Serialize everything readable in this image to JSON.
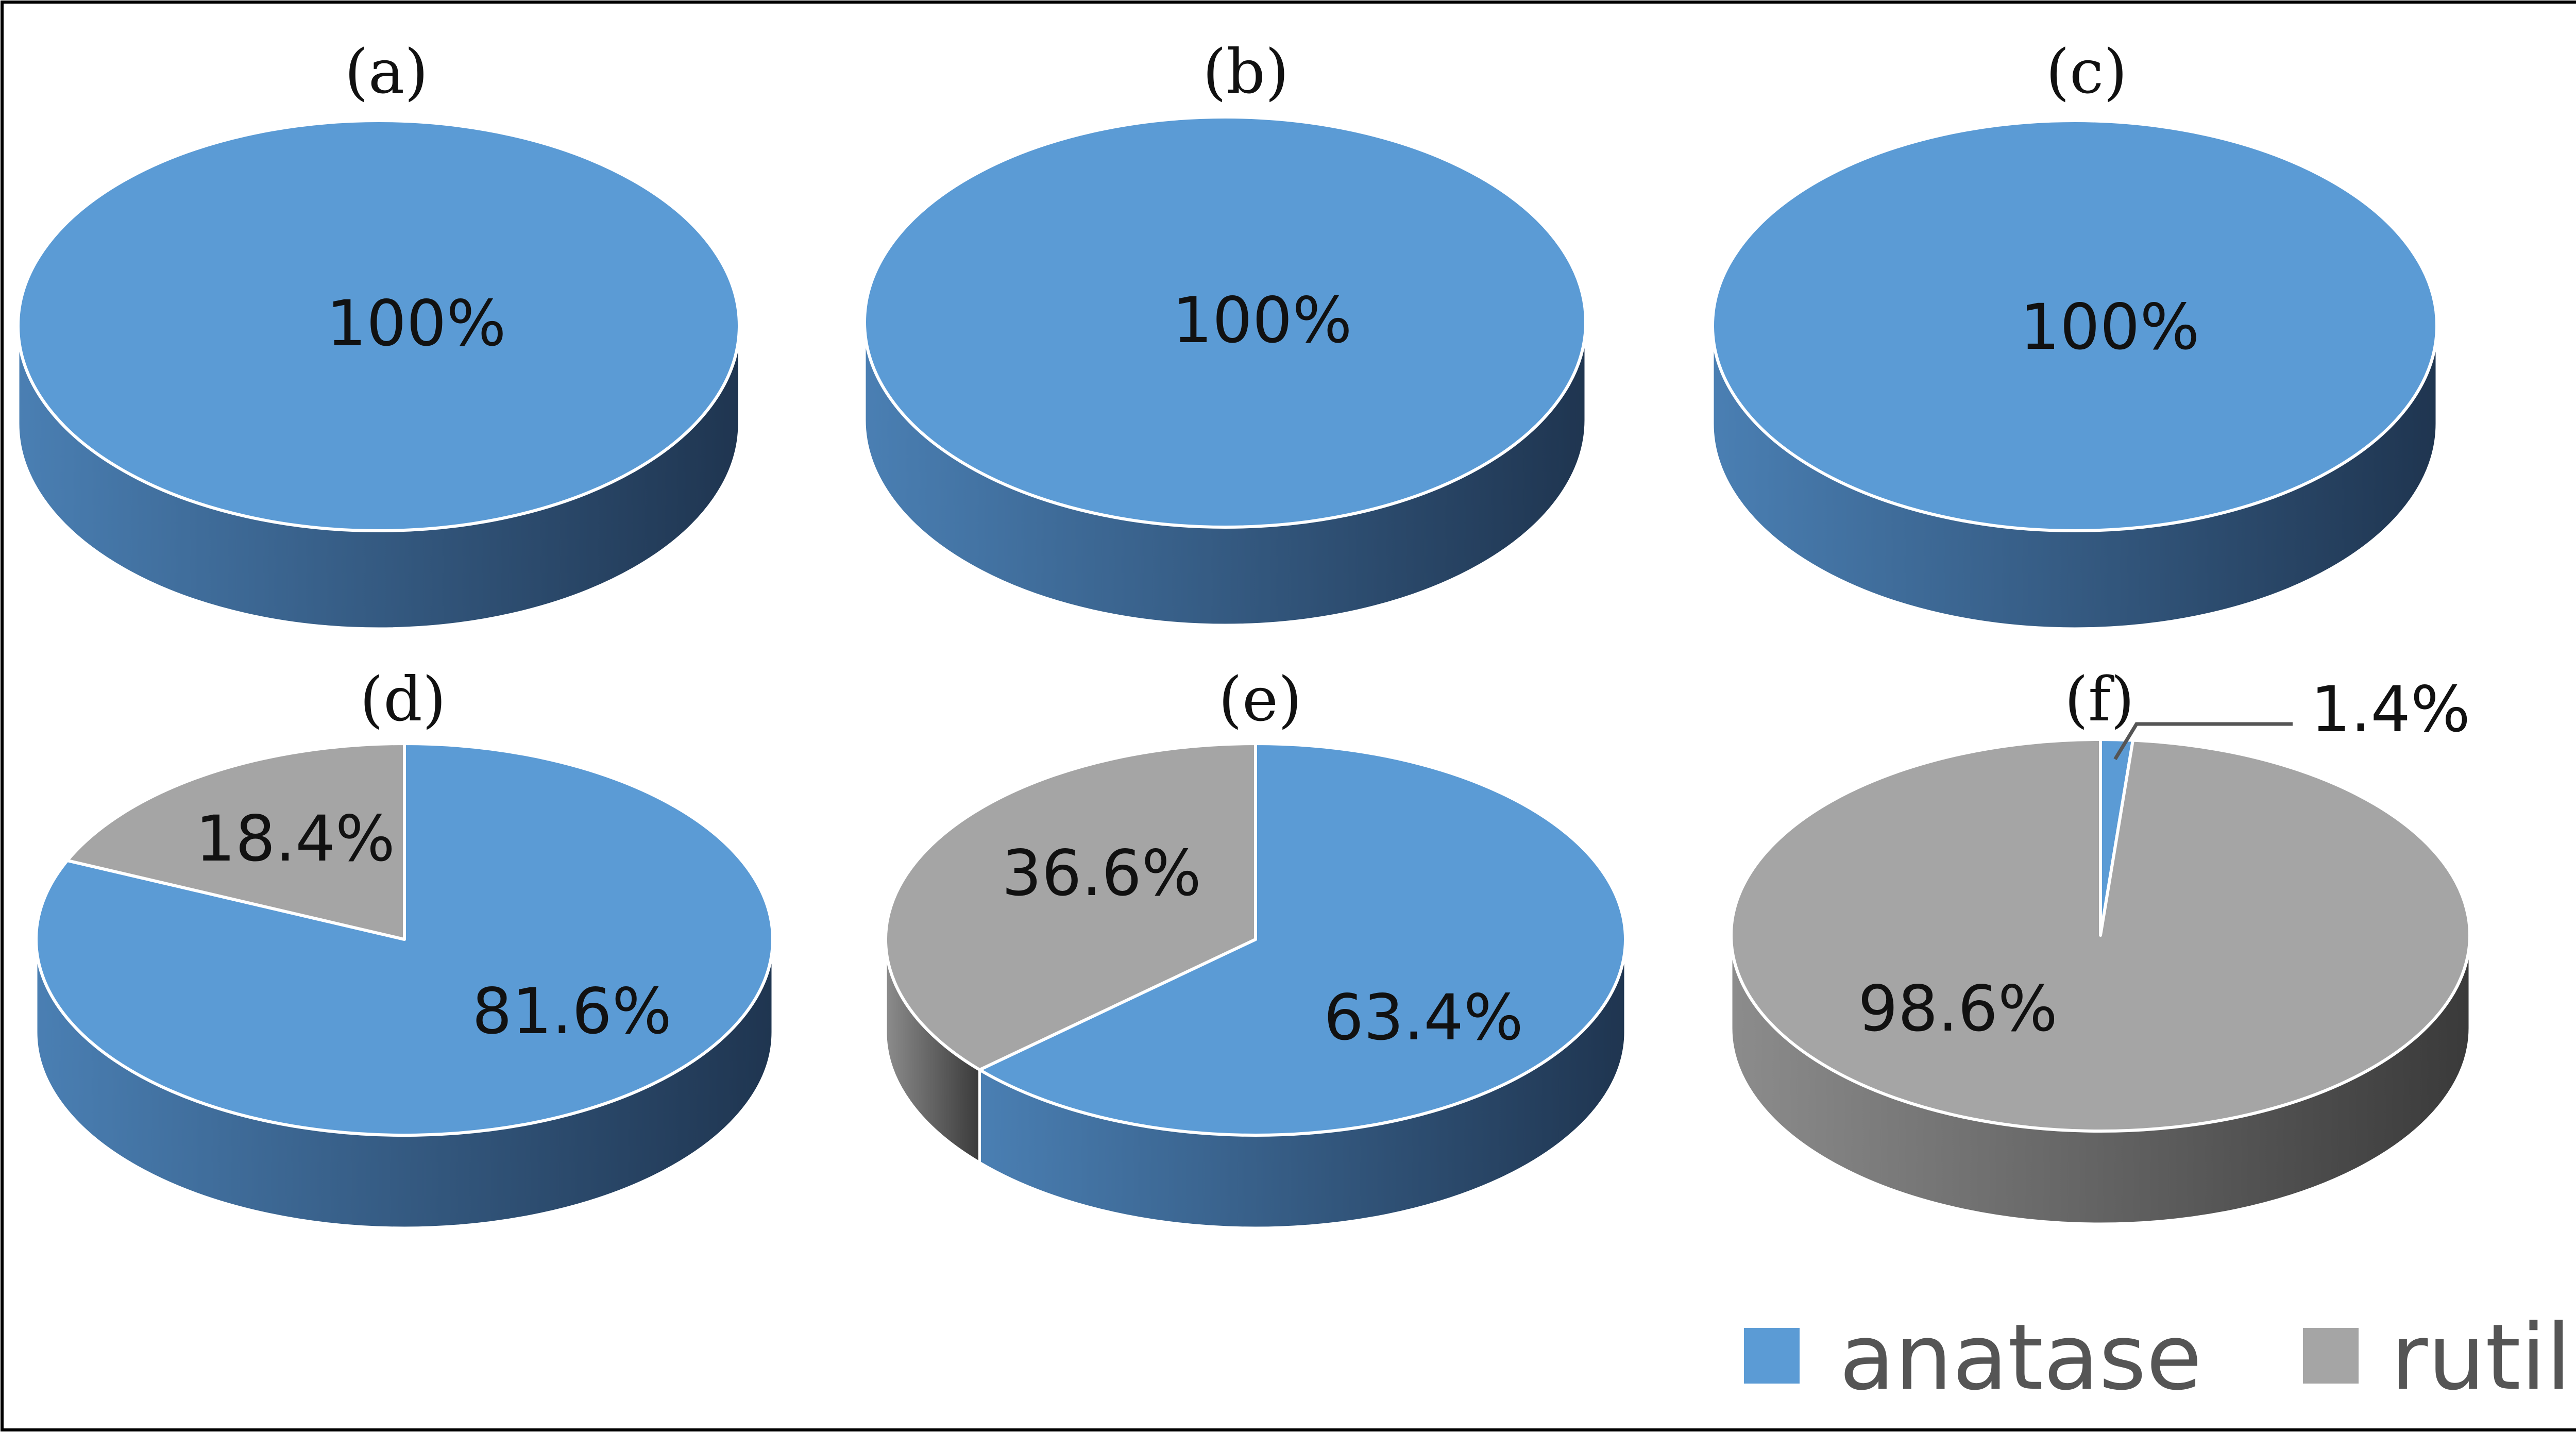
{
  "chart_data": [
    {
      "type": "pie",
      "title": "(a)",
      "labels": [
        "anatase",
        "rutile"
      ],
      "values": [
        100,
        0
      ],
      "data_labels": [
        "100%"
      ]
    },
    {
      "type": "pie",
      "title": "(b)",
      "labels": [
        "anatase",
        "rutile"
      ],
      "values": [
        100,
        0
      ],
      "data_labels": [
        "100%"
      ]
    },
    {
      "type": "pie",
      "title": "(c)",
      "labels": [
        "anatase",
        "rutile"
      ],
      "values": [
        100,
        0
      ],
      "data_labels": [
        "100%"
      ]
    },
    {
      "type": "pie",
      "title": "(d)",
      "labels": [
        "anatase",
        "rutile"
      ],
      "values": [
        81.6,
        18.4
      ],
      "data_labels": [
        "81.6%",
        "18.4%"
      ]
    },
    {
      "type": "pie",
      "title": "(e)",
      "labels": [
        "anatase",
        "rutile"
      ],
      "values": [
        63.4,
        36.6
      ],
      "data_labels": [
        "63.4%",
        "36.6%"
      ]
    },
    {
      "type": "pie",
      "title": "(f)",
      "labels": [
        "anatase",
        "rutile"
      ],
      "values": [
        1.4,
        98.6
      ],
      "data_labels": [
        "1.4%",
        "98.6%"
      ]
    }
  ],
  "legend": {
    "placement": "bottom-right",
    "items": [
      {
        "label": "anatase",
        "color": "#5b9bd5"
      },
      {
        "label": "rutile",
        "color": "#a5a5a5"
      }
    ]
  },
  "colors": {
    "anatase_top": "#5b9bd5",
    "anatase_side_light": "#4a7fb3",
    "anatase_side_dark": "#1f3550",
    "rutile_top": "#a5a5a5",
    "rutile_side_light": "#8c8c8c",
    "rutile_side_dark": "#3a3a3a",
    "border": "#000000"
  }
}
